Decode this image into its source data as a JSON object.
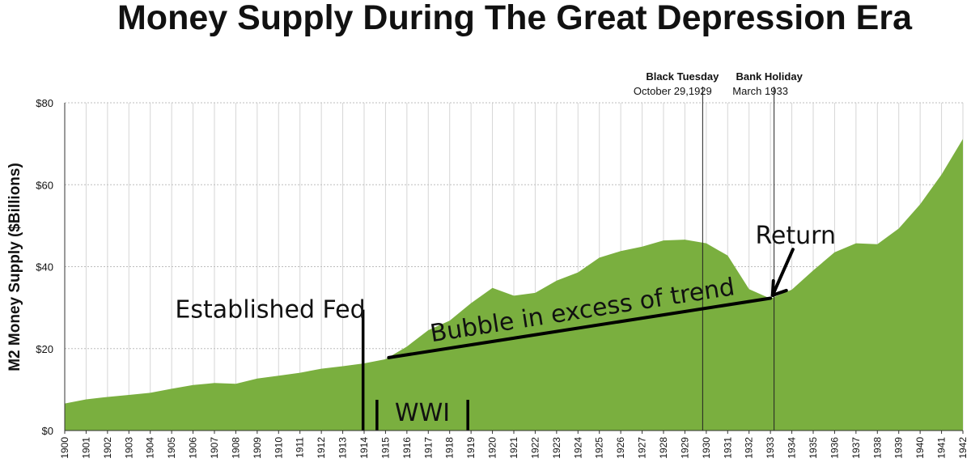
{
  "chart_data": {
    "type": "area",
    "title": "Money Supply During The Great Depression Era",
    "xlabel": "",
    "ylabel": "M2 Money Supply ($Billions)",
    "ylim": [
      0,
      80
    ],
    "y_ticks": [
      "$0",
      "$20",
      "$40",
      "$60",
      "$80"
    ],
    "y_tick_values": [
      0,
      20,
      40,
      60,
      80
    ],
    "grid": true,
    "fill_color": "#7aaf3f",
    "x": [
      1900,
      1901,
      1902,
      1903,
      1904,
      1905,
      1906,
      1907,
      1908,
      1909,
      1910,
      1911,
      1912,
      1913,
      1914,
      1915,
      1916,
      1917,
      1918,
      1919,
      1920,
      1921,
      1922,
      1923,
      1924,
      1925,
      1926,
      1927,
      1928,
      1929,
      1930,
      1931,
      1932,
      1933,
      1934,
      1935,
      1936,
      1937,
      1938,
      1939,
      1940,
      1941,
      1942
    ],
    "x_labels": [
      "1900",
      "1901",
      "1902",
      "1903",
      "1904",
      "1905",
      "1906",
      "1907",
      "1908",
      "1909",
      "1910",
      "1911",
      "1912",
      "1913",
      "1914",
      "1915",
      "1916",
      "1917",
      "1918",
      "1919",
      "1920",
      "1921",
      "1922",
      "1923",
      "1924",
      "1925",
      "1926",
      "1927",
      "1928",
      "1929",
      "1930",
      "1931",
      "1932",
      "1933",
      "1934",
      "1935",
      "1936",
      "1937",
      "1938",
      "1939",
      "1940",
      "1941",
      "1942"
    ],
    "series": [
      {
        "name": "M2 Money Supply",
        "values": [
          6.6,
          7.6,
          8.2,
          8.7,
          9.2,
          10.2,
          11.1,
          11.6,
          11.4,
          12.7,
          13.4,
          14.1,
          15.1,
          15.7,
          16.4,
          17.4,
          20.5,
          24.5,
          26.8,
          31.1,
          34.8,
          32.9,
          33.6,
          36.6,
          38.6,
          42.2,
          43.8,
          44.9,
          46.4,
          46.6,
          45.7,
          42.7,
          34.5,
          32.2,
          34.4,
          39.1,
          43.5,
          45.7,
          45.5,
          49.3,
          55.2,
          62.5,
          71.2
        ]
      }
    ],
    "events": [
      {
        "name": "Black Tuesday",
        "date": "October 29,1929",
        "x": 1929.83
      },
      {
        "name": "Bank Holiday",
        "date": "March 1933",
        "x": 1933.17
      }
    ],
    "annotations": {
      "fed": {
        "text": "Established Fed",
        "x": 1913.95,
        "y_top": 29.5
      },
      "wwi": {
        "text": "WWI",
        "x_start": 1914.6,
        "x_end": 1918.85,
        "y_top": 7.5
      },
      "bubble": {
        "text": "Bubble in excess of trend",
        "from": [
          1915.15,
          17.8
        ],
        "to": [
          1933.0,
          32.3
        ]
      },
      "return": {
        "text": "Return",
        "arrow_from": [
          1934.05,
          44.2
        ],
        "arrow_to": [
          1933.1,
          33.0
        ]
      }
    }
  }
}
